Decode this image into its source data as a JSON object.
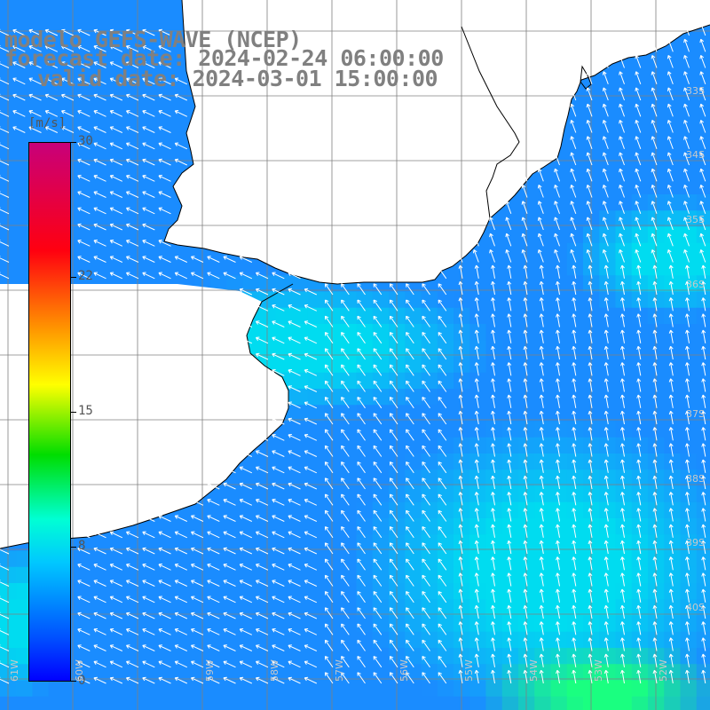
{
  "title": {
    "line1": "modelo GEFS-WAVE (NCEP)",
    "line2": "forecast date: 2024-02-24 06:00:00",
    "line3": "valid date: 2024-03-01 15:00:00"
  },
  "colorbar": {
    "unit": "[m/s]",
    "ticks": [
      "30",
      "22",
      "15",
      "8",
      "0"
    ]
  },
  "lat_labels": [
    "33S",
    "34S",
    "35S",
    "36S",
    "37S",
    "38S",
    "39S",
    "40S"
  ],
  "lon_labels": [
    "61W",
    "60W",
    "59W",
    "58W",
    "57W",
    "56W",
    "55W",
    "54W",
    "53W",
    "52W",
    "51W"
  ],
  "colors": {
    "land": "#ffffff",
    "grid": "#808080",
    "coast": "#000000",
    "arrow": "#ffffff",
    "wind_low": "#1a8cff",
    "wind_mid": "#00dcf0",
    "wind_high": "#1aff80"
  },
  "chart_data": {
    "type": "heatmap",
    "variable": "wind speed",
    "unit": "m/s",
    "color_range": [
      0,
      30
    ],
    "colorbar_ticks": [
      30,
      22,
      15,
      8,
      0
    ],
    "wind_direction": "mostly from the south / southeast (arrows point north and north-west)",
    "typical_speed_range": [
      6,
      11
    ]
  }
}
